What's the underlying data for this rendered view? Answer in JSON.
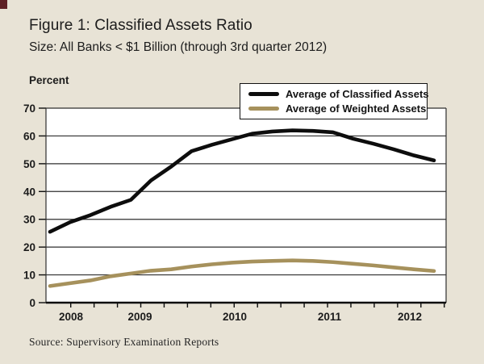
{
  "figure": {
    "title": "Figure 1: Classified Assets Ratio",
    "subtitle": "Size: All Banks < $1 Billion (through 3rd quarter 2012)",
    "y_axis_label": "Percent",
    "source": "Source: Supervisory Examination Reports"
  },
  "legend": [
    {
      "label": "Average of Classified Assets",
      "color": "#0d0d0d"
    },
    {
      "label": "Average of Weighted Assets",
      "color": "#a6915c"
    }
  ],
  "colors": {
    "background": "#e8e3d6",
    "plot_background": "#ffffff",
    "gridline": "#2f2f2f",
    "axis": "#0d0d0d",
    "text": "#1c1c1c",
    "classified_line": "#0d0d0d",
    "weighted_line": "#a6915c",
    "corner_mark": "#5f2126"
  },
  "chart_data": {
    "type": "line",
    "title": "Figure 1: Classified Assets Ratio",
    "subtitle": "Size: All Banks < $1 Billion (through 3rd quarter 2012)",
    "ylabel": "Percent",
    "ylim": [
      0,
      70
    ],
    "yticks": [
      0,
      10,
      20,
      30,
      40,
      50,
      60,
      70
    ],
    "x_tick_labels": [
      "2008",
      "2009",
      "2010",
      "2011",
      "2012"
    ],
    "x": [
      "2007 Q4",
      "2008 Q1",
      "2008 Q2",
      "2008 Q3",
      "2008 Q4",
      "2009 Q1",
      "2009 Q2",
      "2009 Q3",
      "2009 Q4",
      "2010 Q1",
      "2010 Q2",
      "2010 Q3",
      "2010 Q4",
      "2011 Q1",
      "2011 Q2",
      "2011 Q3",
      "2011 Q4",
      "2012 Q1",
      "2012 Q2",
      "2012 Q3"
    ],
    "series": [
      {
        "name": "Average of Classified Assets",
        "color": "#0d0d0d",
        "values": [
          25.5,
          29,
          31.5,
          34.5,
          37,
          44,
          49,
          54.5,
          56.8,
          58.8,
          60.8,
          61.6,
          62,
          61.8,
          61.3,
          59,
          57.2,
          55.2,
          53,
          51.2
        ]
      },
      {
        "name": "Average of Weighted Assets",
        "color": "#a6915c",
        "values": [
          6,
          7,
          8,
          9.5,
          10.5,
          11.5,
          12,
          13,
          13.8,
          14.4,
          14.8,
          15,
          15.2,
          15,
          14.6,
          14,
          13.4,
          12.7,
          12,
          11.4
        ]
      }
    ],
    "grid": true,
    "legend_position": "top-right",
    "source": "Source: Supervisory Examination Reports"
  }
}
